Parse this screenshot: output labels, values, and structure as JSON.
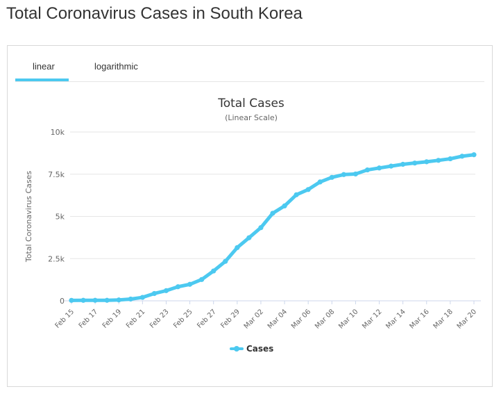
{
  "page": {
    "title": "Total Coronavirus Cases in South Korea"
  },
  "tabs": [
    {
      "label": "linear",
      "active": true
    },
    {
      "label": "logarithmic",
      "active": false
    }
  ],
  "colors": {
    "series": "#4cc9f0",
    "tab_underline": "#4cc9f0"
  },
  "chart_data": {
    "type": "line",
    "title": "Total Cases",
    "subtitle": "(Linear Scale)",
    "xlabel": "",
    "ylabel": "Total Coronavirus Cases",
    "ylim": [
      0,
      10000
    ],
    "yticks": [
      {
        "value": 0,
        "label": "0"
      },
      {
        "value": 2500,
        "label": "2.5k"
      },
      {
        "value": 5000,
        "label": "5k"
      },
      {
        "value": 7500,
        "label": "7.5k"
      },
      {
        "value": 10000,
        "label": "10k"
      }
    ],
    "grid": true,
    "legend": "bottom-center",
    "categories": [
      "Feb 15",
      "Feb 16",
      "Feb 17",
      "Feb 18",
      "Feb 19",
      "Feb 20",
      "Feb 21",
      "Feb 22",
      "Feb 23",
      "Feb 24",
      "Feb 25",
      "Feb 26",
      "Feb 27",
      "Feb 28",
      "Feb 29",
      "Mar 01",
      "Mar 02",
      "Mar 03",
      "Mar 04",
      "Mar 05",
      "Mar 06",
      "Mar 07",
      "Mar 08",
      "Mar 09",
      "Mar 10",
      "Mar 11",
      "Mar 12",
      "Mar 13",
      "Mar 14",
      "Mar 15",
      "Mar 16",
      "Mar 17",
      "Mar 18",
      "Mar 19",
      "Mar 20"
    ],
    "xtick_labels": [
      "Feb 15",
      "Feb 17",
      "Feb 19",
      "Feb 21",
      "Feb 23",
      "Feb 25",
      "Feb 27",
      "Feb 29",
      "Mar 02",
      "Mar 04",
      "Mar 06",
      "Mar 08",
      "Mar 10",
      "Mar 12",
      "Mar 14",
      "Mar 16",
      "Mar 18",
      "Mar 20"
    ],
    "series": [
      {
        "name": "Cases",
        "values": [
          28,
          30,
          31,
          31,
          51,
          104,
          204,
          433,
          602,
          833,
          977,
          1261,
          1766,
          2337,
          3150,
          3736,
          4335,
          5186,
          5621,
          6284,
          6593,
          7041,
          7313,
          7478,
          7513,
          7755,
          7869,
          7979,
          8086,
          8162,
          8236,
          8320,
          8413,
          8565,
          8652
        ]
      }
    ]
  }
}
